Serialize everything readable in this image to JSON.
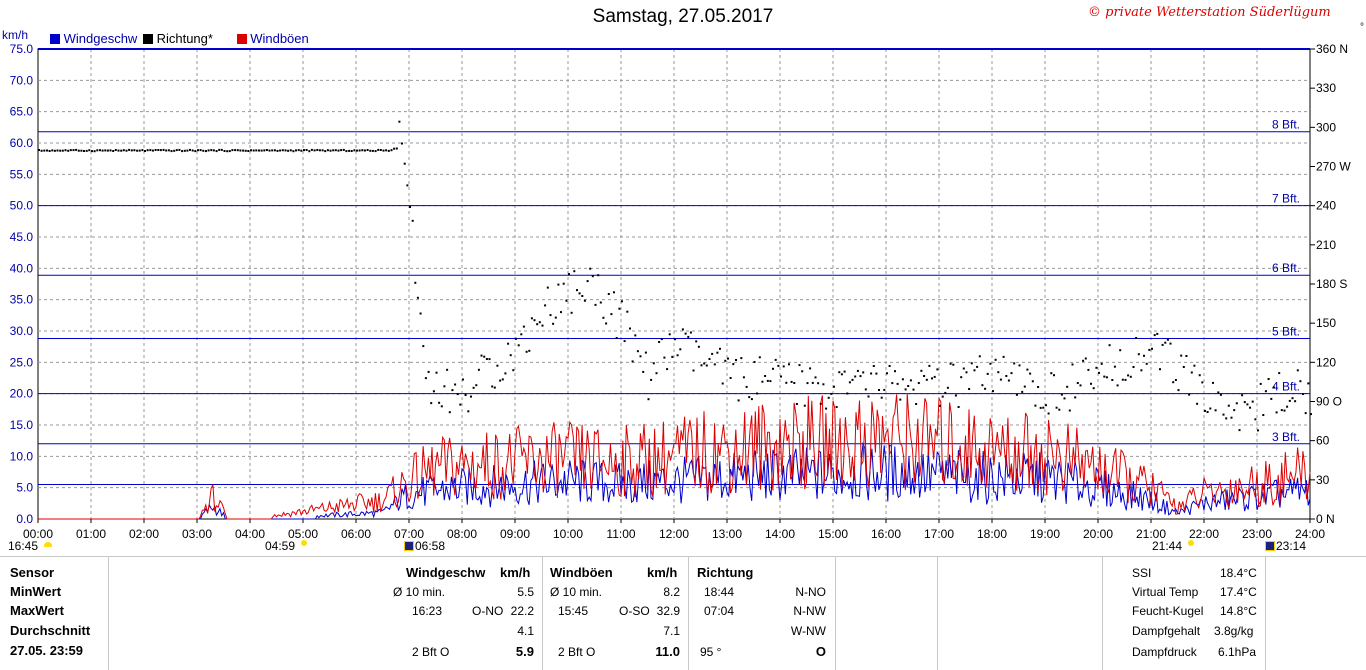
{
  "title": "Samstag, 27.05.2017",
  "copyright": "© private Wetterstation Süderlügum",
  "legend": [
    {
      "label": "Windgeschw",
      "color": "#0000cc"
    },
    {
      "label": "Richtung*",
      "color": "#000000"
    },
    {
      "label": "Windböen",
      "color": "#dd0000"
    }
  ],
  "left_axis_unit": "km/h",
  "right_axis_marker": "°",
  "sun_times": [
    "16:45",
    "04:59",
    "06:58",
    "21:44",
    "23:14"
  ],
  "chart_data": {
    "type": "line",
    "x_ticks": [
      "00:00",
      "01:00",
      "02:00",
      "03:00",
      "04:00",
      "05:00",
      "06:00",
      "07:00",
      "08:00",
      "09:00",
      "10:00",
      "11:00",
      "12:00",
      "13:00",
      "14:00",
      "15:00",
      "16:00",
      "17:00",
      "18:00",
      "19:00",
      "20:00",
      "21:00",
      "22:00",
      "23:00",
      "24:00"
    ],
    "y_left_ticks": [
      "0.0",
      "5.0",
      "10.0",
      "15.0",
      "20.0",
      "25.0",
      "30.0",
      "35.0",
      "40.0",
      "45.0",
      "50.0",
      "55.0",
      "60.0",
      "65.0",
      "70.0",
      "75.0"
    ],
    "ylim_left": [
      0,
      75
    ],
    "ylim_right": [
      0,
      360
    ],
    "y_right_ticks": [
      {
        "value": 0,
        "label": "0  N"
      },
      {
        "value": 30,
        "label": "30"
      },
      {
        "value": 60,
        "label": "60"
      },
      {
        "value": 90,
        "label": "90  O"
      },
      {
        "value": 120,
        "label": "120"
      },
      {
        "value": 150,
        "label": "150"
      },
      {
        "value": 180,
        "label": "180 S"
      },
      {
        "value": 210,
        "label": "210"
      },
      {
        "value": 240,
        "label": "240"
      },
      {
        "value": 270,
        "label": "270 W"
      },
      {
        "value": 300,
        "label": "300"
      },
      {
        "value": 330,
        "label": "330"
      },
      {
        "value": 360,
        "label": "360 N"
      }
    ],
    "beaufort_lines": [
      {
        "kmh": 5.5,
        "label": ""
      },
      {
        "kmh": 12.0,
        "label": "3 Bft."
      },
      {
        "kmh": 20.0,
        "label": "4 Bft."
      },
      {
        "kmh": 28.8,
        "label": "5 Bft."
      },
      {
        "kmh": 38.9,
        "label": "6 Bft."
      },
      {
        "kmh": 50.0,
        "label": "7 Bft."
      },
      {
        "kmh": 61.8,
        "label": "8 Bft."
      }
    ],
    "series": [
      {
        "name": "Windgeschw",
        "color": "#0000cc",
        "axis": "left",
        "x_hours": [
          0,
          3,
          3.3,
          3.6,
          4,
          6.5,
          7,
          7.5,
          8,
          9,
          10,
          11,
          12,
          13,
          14,
          15,
          16,
          17,
          18,
          19,
          20,
          21,
          21.5,
          22,
          23,
          23.5,
          24
        ],
        "values": [
          0,
          0,
          2,
          0,
          0,
          1,
          4,
          4.5,
          5,
          5.5,
          6,
          5.5,
          6,
          6.5,
          7,
          7,
          7.5,
          7,
          6.5,
          6.5,
          5,
          3,
          1,
          2.5,
          3.5,
          4,
          4.5
        ]
      },
      {
        "name": "Windböen",
        "color": "#dd0000",
        "axis": "left",
        "x_hours": [
          0,
          3,
          3.3,
          3.6,
          4,
          6.5,
          7,
          7.5,
          8,
          9,
          10,
          11,
          12,
          13,
          14,
          15,
          16,
          17,
          18,
          19,
          20,
          21,
          21.5,
          22,
          23,
          23.5,
          24
        ],
        "values": [
          0,
          0,
          3.5,
          0,
          0,
          3,
          6,
          8,
          8.5,
          9,
          9.5,
          9,
          10,
          11,
          12,
          12,
          13,
          12,
          11,
          10.5,
          8,
          5,
          2,
          4,
          5.5,
          6.5,
          7.5
        ]
      },
      {
        "name": "Richtung*",
        "color": "#000000",
        "axis": "right",
        "x_hours": [
          0,
          6.6,
          6.75,
          6.8,
          7,
          7.3,
          7.6,
          8,
          8.5,
          9,
          9.5,
          10,
          10.5,
          11,
          11.5,
          12,
          13,
          14,
          15,
          16,
          17,
          18,
          19,
          20,
          20.5,
          21,
          21.5,
          22,
          22.5,
          23,
          23.5,
          24
        ],
        "values": [
          283,
          283,
          285,
          305,
          240,
          110,
          100,
          95,
          115,
          130,
          160,
          175,
          180,
          150,
          110,
          135,
          110,
          105,
          100,
          105,
          100,
          110,
          95,
          110,
          125,
          130,
          115,
          95,
          85,
          85,
          100,
          95
        ]
      }
    ]
  },
  "table": {
    "row_labels": [
      "Sensor",
      "MinWert",
      "MaxWert",
      "Durchschnitt",
      "27.05. 23:59"
    ],
    "windgeschw": {
      "header": "Windgeschw",
      "unit": "km/h",
      "avg10_label": "Ø 10 min.",
      "avg10_value": "5.5",
      "max_time": "16:23",
      "max_dir": "O-NO",
      "max_value": "22.2",
      "avg": "4.1",
      "now_bft": "2 Bft O",
      "now_value": "5.9"
    },
    "windboeen": {
      "header": "Windböen",
      "unit": "km/h",
      "avg10_label": "Ø 10 min.",
      "avg10_value": "8.2",
      "max_time": "15:45",
      "max_dir": "O-SO",
      "max_value": "32.9",
      "avg": "7.1",
      "now_bft": "2 Bft O",
      "now_value": "11.0"
    },
    "richtung": {
      "header": "Richtung",
      "r1_time": "18:44",
      "r1_dir": "N-NO",
      "r2_time": "07:04",
      "r2_dir": "N-NW",
      "r3_dir": "W-NW",
      "now_deg": "95 °",
      "now_dir": "O"
    },
    "extra": [
      {
        "label": "SSI",
        "value": "18.4°C"
      },
      {
        "label": "Virtual Temp",
        "value": "17.4°C"
      },
      {
        "label": "Feucht-Kugel",
        "value": "14.8°C"
      },
      {
        "label": "Dampfgehalt",
        "value": "3.8g/kg"
      },
      {
        "label": "Dampfdruck",
        "value": "6.1hPa"
      }
    ]
  }
}
